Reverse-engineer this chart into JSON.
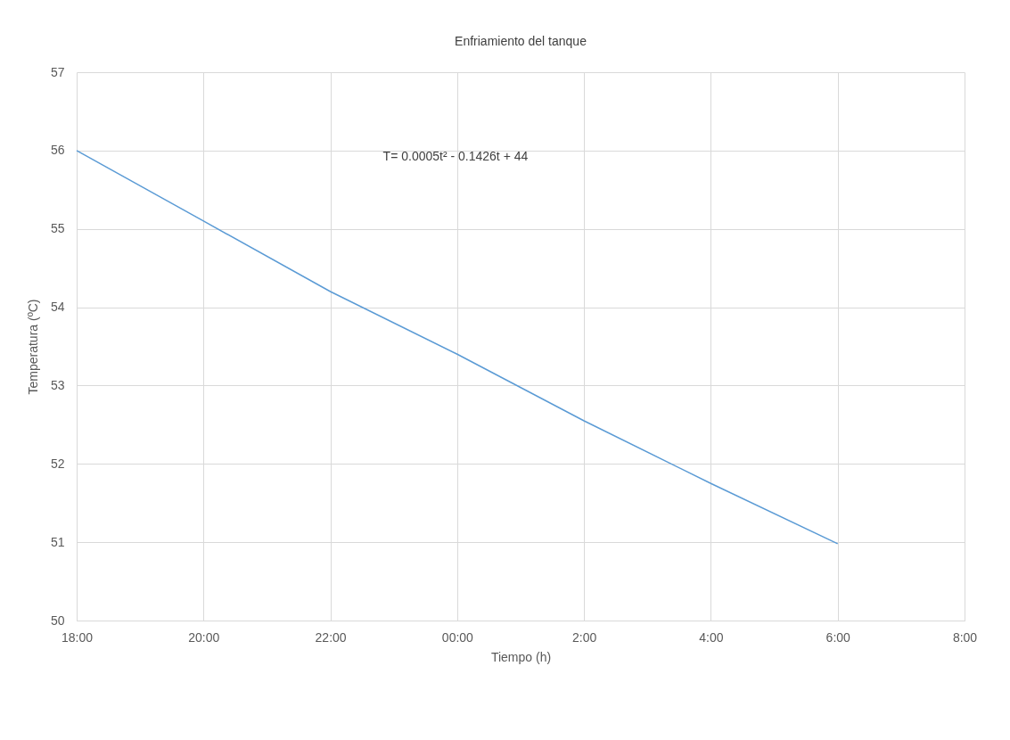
{
  "chart_data": {
    "type": "line",
    "title": "Enfriamiento del tanque",
    "xlabel": "Tiempo (h)",
    "ylabel": "Temperatura (ºC)",
    "x": [
      "2000-01-01T18:00",
      "2000-01-01T20:00",
      "2000-01-01T22:00",
      "2000-01-02T00:00",
      "2000-01-02T02:00",
      "2000-01-02T04:00",
      "2000-01-02T06:00"
    ],
    "series": [
      {
        "color": "#5b9bd5",
        "values": [
          56,
          55.1,
          54.2,
          53.4,
          52.55,
          51.75,
          50.98
        ]
      }
    ],
    "xlim": [
      "2000-01-01T18:00",
      "2000-01-02T08:00"
    ],
    "xticks": [
      {
        "value": "2000-01-01T18:00",
        "label": "18:00"
      },
      {
        "value": "2000-01-01T20:00",
        "label": "20:00"
      },
      {
        "value": "2000-01-01T22:00",
        "label": "22:00"
      },
      {
        "value": "2000-01-02T00:00",
        "label": "00:00"
      },
      {
        "value": "2000-01-02T02:00",
        "label": "2:00"
      },
      {
        "value": "2000-01-02T04:00",
        "label": "4:00"
      },
      {
        "value": "2000-01-02T06:00",
        "label": "6:00"
      },
      {
        "value": "2000-01-02T08:00",
        "label": "8:00"
      }
    ],
    "ylim": [
      50,
      57
    ],
    "yticks": [
      50,
      51,
      52,
      53,
      54,
      55,
      56,
      57
    ],
    "grid": true,
    "marker": "none",
    "line_style": "solid",
    "annotations": [
      "T= 0.0005t² - 0.1426t + 44"
    ]
  }
}
